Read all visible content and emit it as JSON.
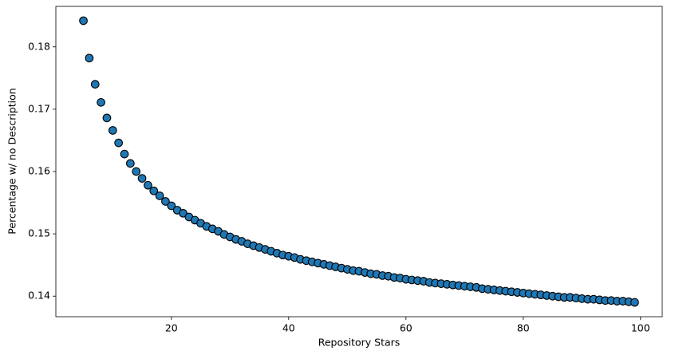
{
  "chart_data": {
    "type": "scatter",
    "x_label": "Repository Stars",
    "y_label": "Percentage w/ no Description",
    "color": "#1f77b4",
    "edgecolor": "#000000",
    "xlim": [
      0.3,
      103.7
    ],
    "ylim": [
      0.1367,
      0.1865
    ],
    "xticks": [
      20,
      40,
      60,
      80,
      100
    ],
    "yticks": [
      0.14,
      0.15,
      0.16,
      0.17,
      0.18
    ],
    "x": [
      5,
      6,
      7,
      8,
      9,
      10,
      11,
      12,
      13,
      14,
      15,
      16,
      17,
      18,
      19,
      20,
      21,
      22,
      23,
      24,
      25,
      26,
      27,
      28,
      29,
      30,
      31,
      32,
      33,
      34,
      35,
      36,
      37,
      38,
      39,
      40,
      41,
      42,
      43,
      44,
      45,
      46,
      47,
      48,
      49,
      50,
      51,
      52,
      53,
      54,
      55,
      56,
      57,
      58,
      59,
      60,
      61,
      62,
      63,
      64,
      65,
      66,
      67,
      68,
      69,
      70,
      71,
      72,
      73,
      74,
      75,
      76,
      77,
      78,
      79,
      80,
      81,
      82,
      83,
      84,
      85,
      86,
      87,
      88,
      89,
      90,
      91,
      92,
      93,
      94,
      95,
      96,
      97,
      98,
      99
    ],
    "values": [
      0.1842,
      0.1782,
      0.174,
      0.1711,
      0.1686,
      0.1666,
      0.1646,
      0.1628,
      0.1613,
      0.16,
      0.1589,
      0.1578,
      0.1569,
      0.1561,
      0.1552,
      0.1545,
      0.1538,
      0.1533,
      0.1527,
      0.1522,
      0.1517,
      0.1512,
      0.1508,
      0.1504,
      0.1499,
      0.1495,
      0.1491,
      0.1488,
      0.1484,
      0.1481,
      0.1478,
      0.1475,
      0.1472,
      0.1469,
      0.1466,
      0.1464,
      0.1462,
      0.1459,
      0.1457,
      0.1455,
      0.1453,
      0.1451,
      0.1449,
      0.1447,
      0.1445,
      0.1443,
      0.1441,
      0.144,
      0.1438,
      0.1436,
      0.1435,
      0.1433,
      0.1432,
      0.143,
      0.1429,
      0.1427,
      0.1426,
      0.1425,
      0.1424,
      0.1422,
      0.1421,
      0.142,
      0.1419,
      0.1418,
      0.1417,
      0.1416,
      0.1415,
      0.1414,
      0.1412,
      0.1411,
      0.141,
      0.1409,
      0.1408,
      0.1407,
      0.1406,
      0.1405,
      0.1404,
      0.1403,
      0.1402,
      0.1401,
      0.14,
      0.1399,
      0.1398,
      0.1398,
      0.1397,
      0.1396,
      0.1395,
      0.1395,
      0.1394,
      0.1393,
      0.1393,
      0.1392,
      0.1392,
      0.1391,
      0.139
    ]
  }
}
